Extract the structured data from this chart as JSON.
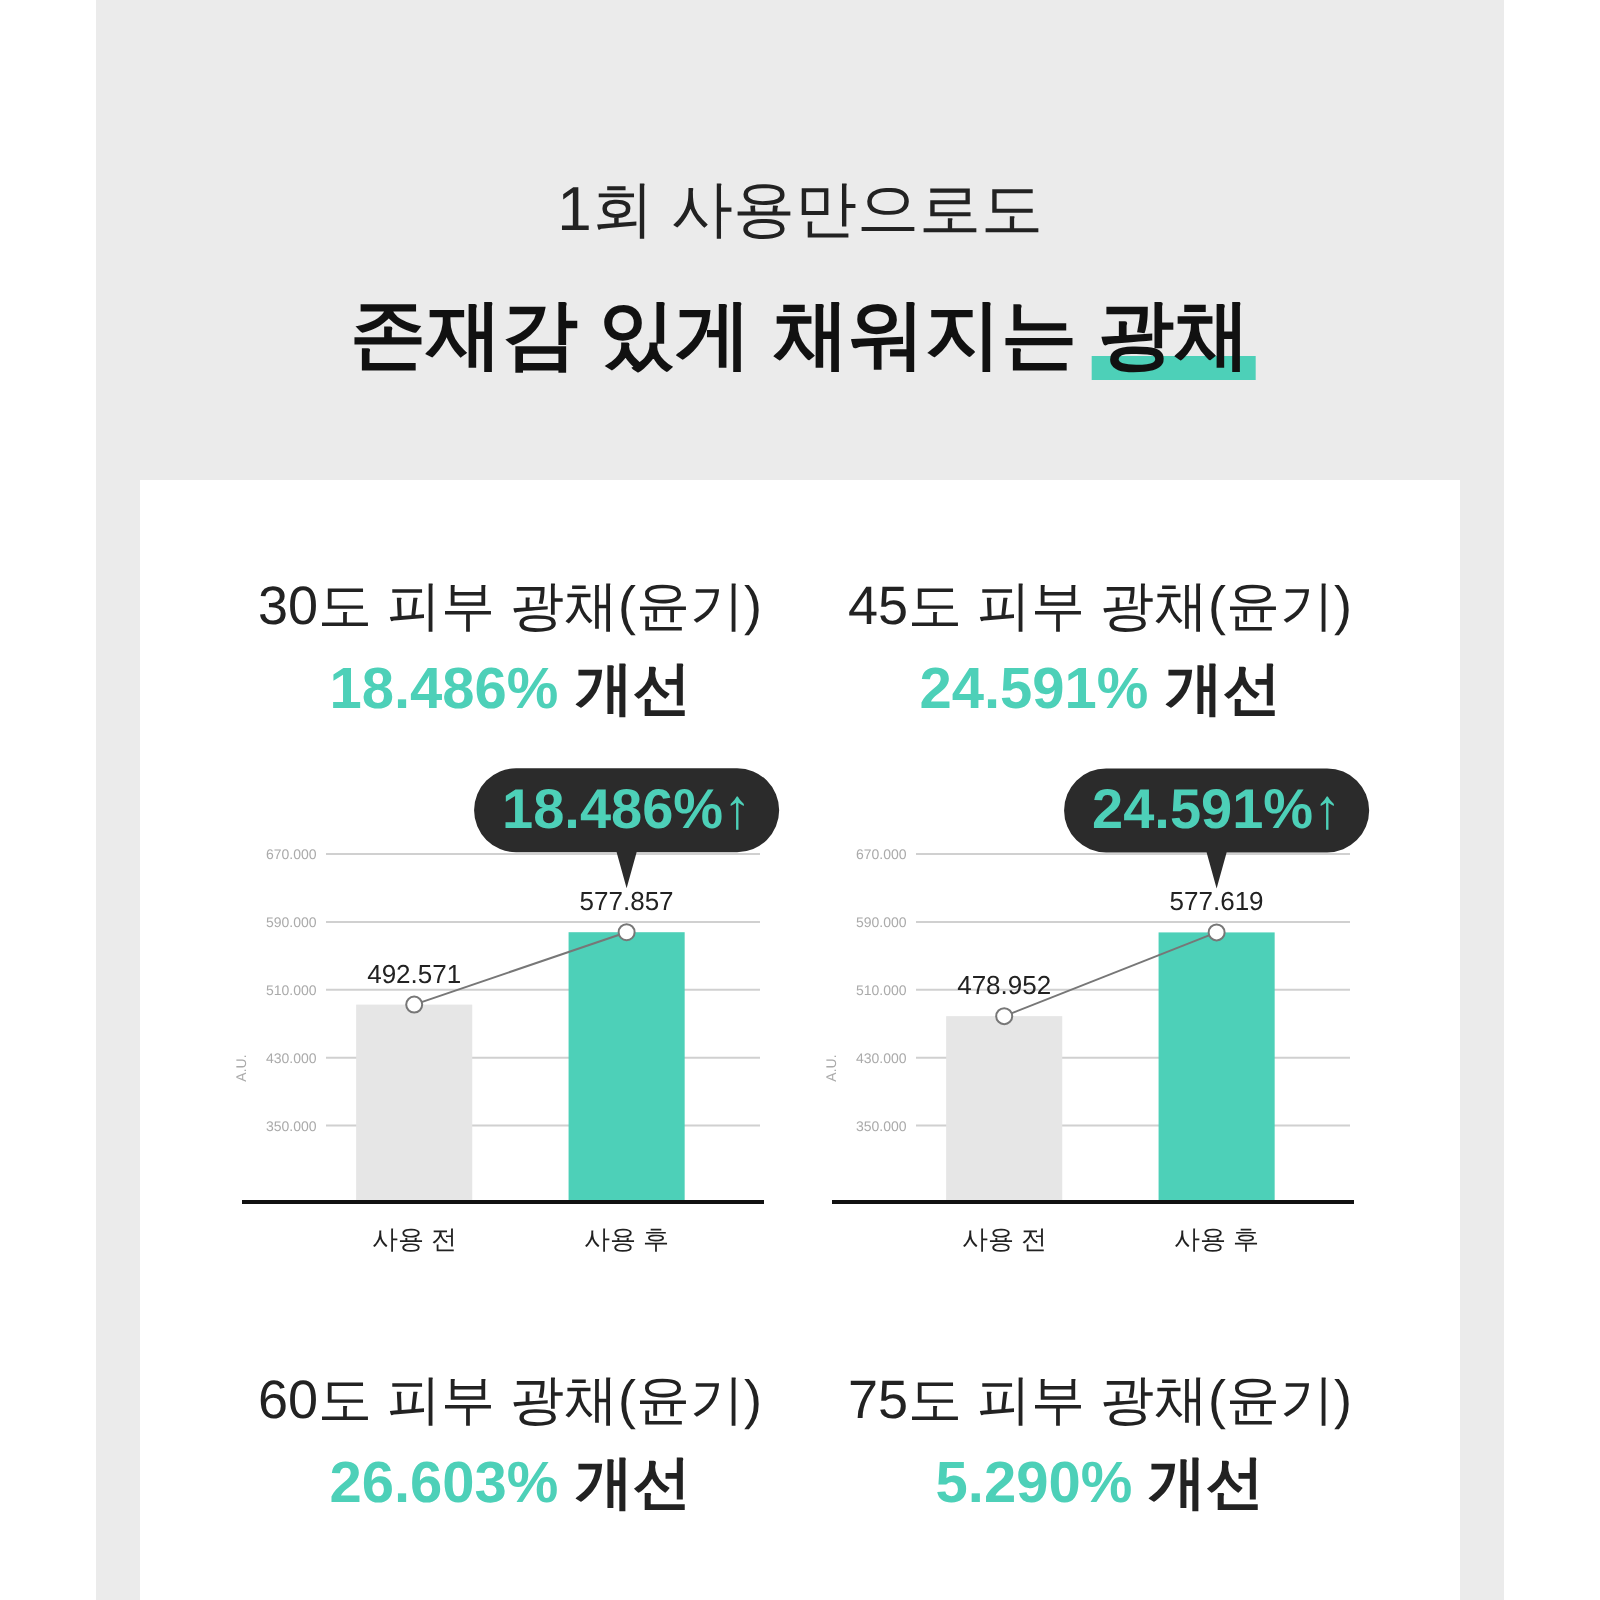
{
  "chart_data": [
    {
      "type": "other",
      "title": "1회 사용만으로도",
      "subtitle": "존재감 있게 채워지는 광채"
    },
    {
      "type": "bar",
      "title": "30도 피부 광채(윤기)",
      "subtitle": "**18.486%** 개선",
      "ylabel": "A.U.",
      "categories": [
        "사용 전",
        "사용 후"
      ],
      "ylim": [
        260,
        670
      ],
      "yticks": [
        {
          "value": 350,
          "label": "350.000"
        },
        {
          "value": 430,
          "label": "430.000"
        },
        {
          "value": 510,
          "label": "510.000"
        },
        {
          "value": 590,
          "label": "590.000"
        },
        {
          "value": 670,
          "label": "670.000"
        }
      ],
      "grid": "y",
      "series": [
        {
          "type": "bar",
          "colors": [
            "#e6e6e6",
            "#4dd0b8"
          ],
          "values": [
            492.571,
            577.857
          ]
        },
        {
          "type": "line",
          "color": "#777777",
          "marker": "circle",
          "values": [
            492.571,
            577.857
          ],
          "value_labels": [
            "492.571",
            "577.857"
          ]
        }
      ],
      "annotations": [
        {
          "text": "18.486%↑",
          "x": "사용 후",
          "y": 577.857
        }
      ]
    },
    {
      "type": "bar",
      "title": "45도 피부 광채(윤기)",
      "subtitle": "**24.591%** 개선",
      "ylabel": "A.U.",
      "categories": [
        "사용 전",
        "사용 후"
      ],
      "ylim": [
        260,
        670
      ],
      "yticks": [
        {
          "value": 350,
          "label": "350.000"
        },
        {
          "value": 430,
          "label": "430.000"
        },
        {
          "value": 510,
          "label": "510.000"
        },
        {
          "value": 590,
          "label": "590.000"
        },
        {
          "value": 670,
          "label": "670.000"
        }
      ],
      "grid": "y",
      "series": [
        {
          "type": "bar",
          "colors": [
            "#e6e6e6",
            "#4dd0b8"
          ],
          "values": [
            478.952,
            577.619
          ]
        },
        {
          "type": "line",
          "color": "#777777",
          "marker": "circle",
          "values": [
            478.952,
            577.619
          ],
          "value_labels": [
            "478.952",
            "577.619"
          ]
        }
      ],
      "annotations": [
        {
          "text": "24.591%↑",
          "x": "사용 후",
          "y": 577.619
        }
      ]
    },
    {
      "type": "other",
      "title": "60도 피부 광채(윤기)",
      "subtitle": "**26.603%** 개선"
    },
    {
      "type": "other",
      "title": "75도 피부 광채(윤기)",
      "subtitle": "**5.290%** 개선"
    }
  ]
}
